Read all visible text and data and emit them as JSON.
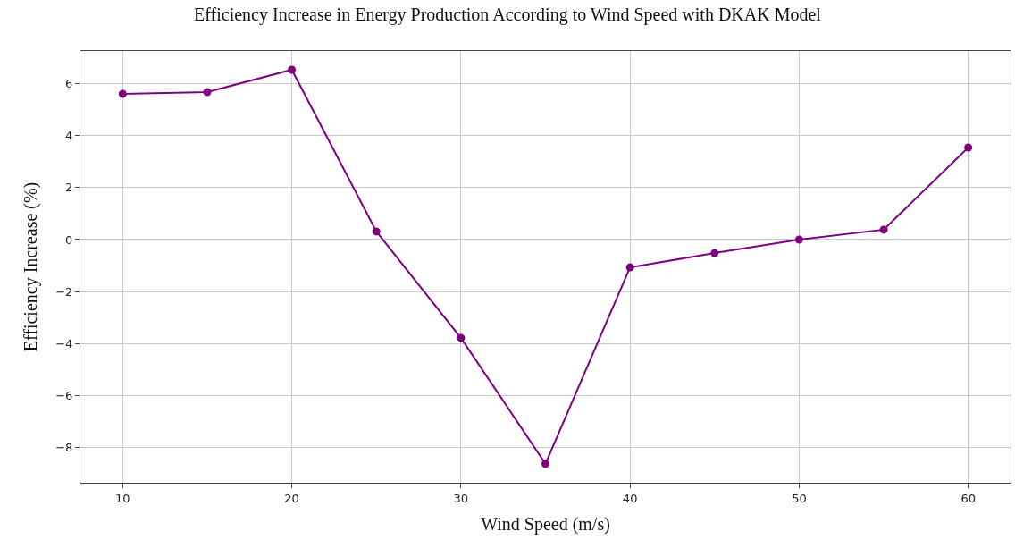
{
  "chart_data": {
    "type": "line",
    "title": "Efficiency Increase in Energy Production According to Wind Speed with DKAK Model",
    "xlabel": "Wind Speed (m/s)",
    "ylabel": "Efficiency Increase (%)",
    "x": [
      10,
      15,
      20,
      25,
      30,
      35,
      40,
      45,
      50,
      55,
      60
    ],
    "series": [
      {
        "color": "#800080",
        "values": [
          5.6,
          5.67,
          6.53,
          0.31,
          -3.78,
          -8.62,
          -1.07,
          -0.52,
          0.0,
          0.38,
          3.54
        ]
      }
    ],
    "xlim": [
      7.5,
      62.5
    ],
    "xticks": [
      10,
      20,
      30,
      40,
      50,
      60
    ],
    "ylim": [
      -9.35,
      7.25
    ],
    "yticks": [
      -8,
      -6,
      -4,
      -2,
      0,
      2,
      4,
      6
    ],
    "grid": true,
    "marker": "circle",
    "line_style": "solid"
  }
}
